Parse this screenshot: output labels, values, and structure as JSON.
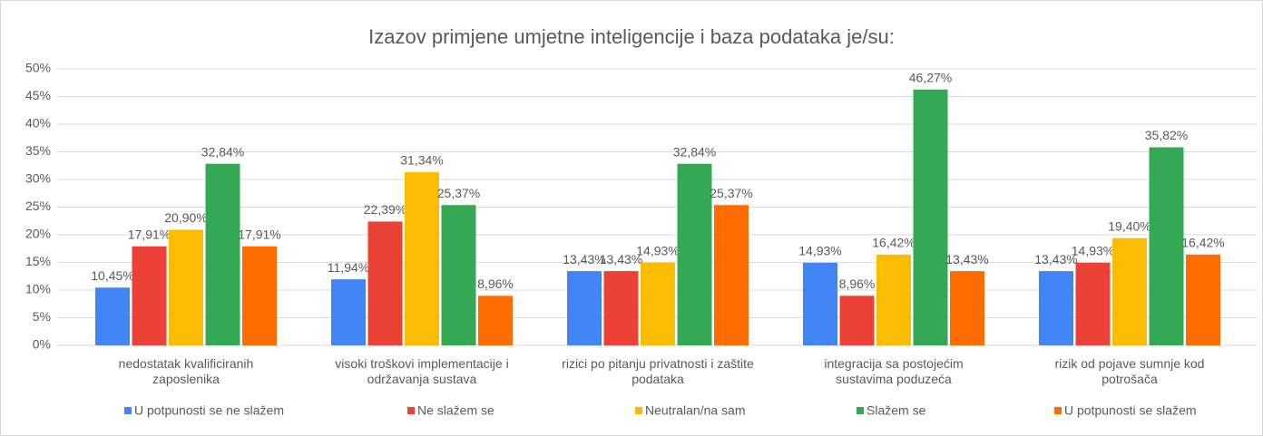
{
  "chart_data": {
    "type": "bar",
    "title": "Izazov primjene umjetne inteligencije i baza podataka je/su:",
    "categories": [
      "nedostatak kvalificiranih zaposlenika",
      "visoki troškovi implementacije i održavanja sustava",
      "rizici po pitanju privatnosti i zaštite podataka",
      "integracija sa postojećim sustavima poduzeća",
      "rizik od pojave sumnje kod potrošača"
    ],
    "series": [
      {
        "name": "U potpunosti se ne slažem",
        "color": "#4285f4",
        "values": [
          10.45,
          11.94,
          13.43,
          14.93,
          13.43
        ],
        "value_labels": [
          "10,45%",
          "11,94%",
          "13,43%",
          "14,93%",
          "13,43%"
        ]
      },
      {
        "name": "Ne slažem se",
        "color": "#ea4335",
        "values": [
          17.91,
          22.39,
          13.43,
          8.96,
          14.93
        ],
        "value_labels": [
          "17,91%",
          "22,39%",
          "13,43%",
          "8,96%",
          "14,93%"
        ]
      },
      {
        "name": "Neutralan/na sam",
        "color": "#fbbc04",
        "values": [
          20.9,
          31.34,
          14.93,
          16.42,
          19.4
        ],
        "value_labels": [
          "20,90%",
          "31,34%",
          "14,93%",
          "16,42%",
          "19,40%"
        ]
      },
      {
        "name": "Slažem se",
        "color": "#34a853",
        "values": [
          32.84,
          25.37,
          32.84,
          46.27,
          35.82
        ],
        "value_labels": [
          "32,84%",
          "25,37%",
          "32,84%",
          "46,27%",
          "35,82%"
        ]
      },
      {
        "name": "U potpunosti se slažem",
        "color": "#ff6d01",
        "values": [
          17.91,
          8.96,
          25.37,
          13.43,
          16.42
        ],
        "value_labels": [
          "17,91%",
          "8,96%",
          "25,37%",
          "13,43%",
          "16,42%"
        ]
      }
    ],
    "ylim": [
      0,
      50
    ],
    "yticks": [
      {
        "value": 0,
        "label": "0%"
      },
      {
        "value": 5,
        "label": "5%"
      },
      {
        "value": 10,
        "label": "10%"
      },
      {
        "value": 15,
        "label": "15%"
      },
      {
        "value": 20,
        "label": "20%"
      },
      {
        "value": 25,
        "label": "25%"
      },
      {
        "value": 30,
        "label": "30%"
      },
      {
        "value": 35,
        "label": "35%"
      },
      {
        "value": 40,
        "label": "40%"
      },
      {
        "value": 45,
        "label": "45%"
      },
      {
        "value": 50,
        "label": "50%"
      }
    ],
    "grid": true,
    "legend": "bottom"
  }
}
